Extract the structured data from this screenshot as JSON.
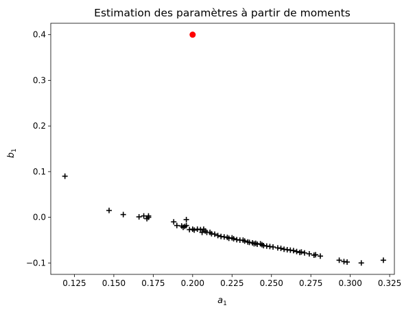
{
  "chart_data": {
    "type": "scatter",
    "title": "Estimation des paramètres à partir de moments",
    "xlabel": {
      "base": "a",
      "sub": "1"
    },
    "ylabel": {
      "base": "b",
      "sub": "1"
    },
    "xlim": [
      0.11,
      0.328
    ],
    "ylim": [
      -0.125,
      0.425
    ],
    "xticks": [
      0.125,
      0.15,
      0.175,
      0.2,
      0.225,
      0.25,
      0.275,
      0.3,
      0.325
    ],
    "xtick_labels": [
      "0.125",
      "0.150",
      "0.175",
      "0.200",
      "0.225",
      "0.250",
      "0.275",
      "0.300",
      "0.325"
    ],
    "yticks": [
      -0.1,
      0.0,
      0.1,
      0.2,
      0.3,
      0.4
    ],
    "ytick_labels": [
      "−0.1",
      "0.0",
      "0.1",
      "0.2",
      "0.3",
      "0.4"
    ],
    "grid": false,
    "series": [
      {
        "marker": "plus",
        "color": "#000000",
        "points": [
          [
            0.119,
            0.09
          ],
          [
            0.147,
            0.015
          ],
          [
            0.156,
            0.006
          ],
          [
            0.166,
            0.001
          ],
          [
            0.169,
            0.003
          ],
          [
            0.171,
            -0.003
          ],
          [
            0.172,
            0.0
          ],
          [
            0.172,
            0.003
          ],
          [
            0.188,
            -0.01
          ],
          [
            0.19,
            -0.018
          ],
          [
            0.193,
            -0.019
          ],
          [
            0.194,
            -0.022
          ],
          [
            0.195,
            -0.02
          ],
          [
            0.196,
            -0.005
          ],
          [
            0.196,
            -0.018
          ],
          [
            0.198,
            -0.027
          ],
          [
            0.2,
            -0.026
          ],
          [
            0.201,
            -0.028
          ],
          [
            0.203,
            -0.026
          ],
          [
            0.205,
            -0.027
          ],
          [
            0.206,
            -0.033
          ],
          [
            0.207,
            -0.026
          ],
          [
            0.208,
            -0.03
          ],
          [
            0.209,
            -0.033
          ],
          [
            0.211,
            -0.033
          ],
          [
            0.212,
            -0.036
          ],
          [
            0.214,
            -0.037
          ],
          [
            0.216,
            -0.04
          ],
          [
            0.218,
            -0.042
          ],
          [
            0.22,
            -0.043
          ],
          [
            0.222,
            -0.044
          ],
          [
            0.223,
            -0.046
          ],
          [
            0.225,
            -0.045
          ],
          [
            0.226,
            -0.047
          ],
          [
            0.228,
            -0.049
          ],
          [
            0.23,
            -0.05
          ],
          [
            0.232,
            -0.05
          ],
          [
            0.233,
            -0.052
          ],
          [
            0.235,
            -0.054
          ],
          [
            0.236,
            -0.055
          ],
          [
            0.238,
            -0.056
          ],
          [
            0.239,
            -0.058
          ],
          [
            0.24,
            -0.057
          ],
          [
            0.241,
            -0.059
          ],
          [
            0.243,
            -0.058
          ],
          [
            0.244,
            -0.06
          ],
          [
            0.245,
            -0.062
          ],
          [
            0.247,
            -0.063
          ],
          [
            0.249,
            -0.064
          ],
          [
            0.251,
            -0.065
          ],
          [
            0.254,
            -0.067
          ],
          [
            0.256,
            -0.068
          ],
          [
            0.258,
            -0.07
          ],
          [
            0.26,
            -0.071
          ],
          [
            0.262,
            -0.072
          ],
          [
            0.264,
            -0.073
          ],
          [
            0.266,
            -0.075
          ],
          [
            0.268,
            -0.077
          ],
          [
            0.269,
            -0.076
          ],
          [
            0.271,
            -0.078
          ],
          [
            0.274,
            -0.08
          ],
          [
            0.277,
            -0.083
          ],
          [
            0.278,
            -0.082
          ],
          [
            0.281,
            -0.085
          ],
          [
            0.293,
            -0.094
          ],
          [
            0.296,
            -0.097
          ],
          [
            0.298,
            -0.098
          ],
          [
            0.307,
            -0.1
          ],
          [
            0.321,
            -0.094
          ]
        ]
      },
      {
        "marker": "circle",
        "color": "#ff0000",
        "points": [
          [
            0.2,
            0.4
          ]
        ]
      }
    ]
  }
}
